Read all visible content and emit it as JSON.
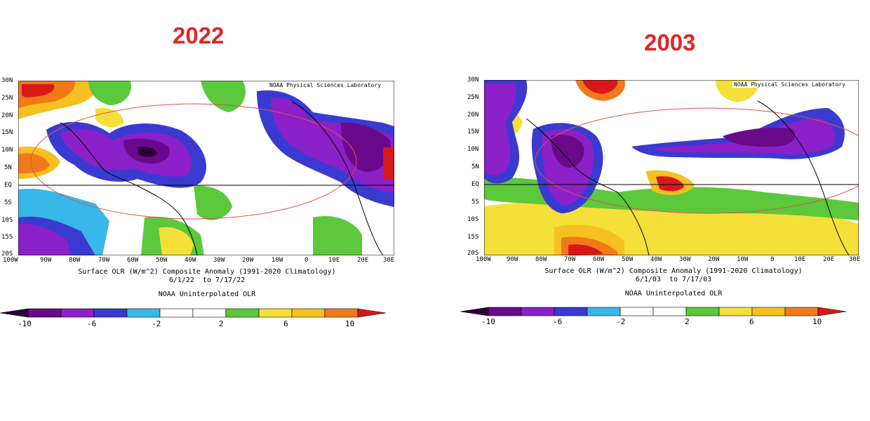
{
  "panels": [
    {
      "year": "2022",
      "credit": "NOAA Physical Sciences Laboratory",
      "caption_line1": "Surface OLR (W/m^2) Composite Anomaly (1991-2020 Climatology)",
      "caption_line2": "6/1/22  to 7/17/22",
      "caption_line3": "NOAA Uninterpolated OLR"
    },
    {
      "year": "2003",
      "credit": "NOAA Physical Sciences Laboratory",
      "caption_line1": "Surface OLR (W/m^2) Composite Anomaly (1991-2020 Climatology)",
      "caption_line2": "6/1/03  to 7/17/03",
      "caption_line3": "NOAA Uninterpolated OLR"
    }
  ],
  "lat_labels": [
    "30N",
    "25N",
    "20N",
    "15N",
    "10N",
    "5N",
    "EQ",
    "5S",
    "10S",
    "15S",
    "20S"
  ],
  "lon_labels": [
    "100W",
    "90W",
    "80W",
    "70W",
    "60W",
    "50W",
    "40W",
    "30W",
    "20W",
    "10W",
    "0",
    "10E",
    "20E",
    "30E"
  ],
  "colorbar": {
    "ticks": [
      "-10",
      "-6",
      "-2",
      "2",
      "6",
      "10"
    ],
    "colors": [
      "#2a0035",
      "#6a0a8a",
      "#8b20c8",
      "#3a3ad0",
      "#38b8e8",
      "#ffffff",
      "#ffffff",
      "#5cc83c",
      "#f5e03a",
      "#f5c020",
      "#f07a1a",
      "#d81818"
    ]
  }
}
